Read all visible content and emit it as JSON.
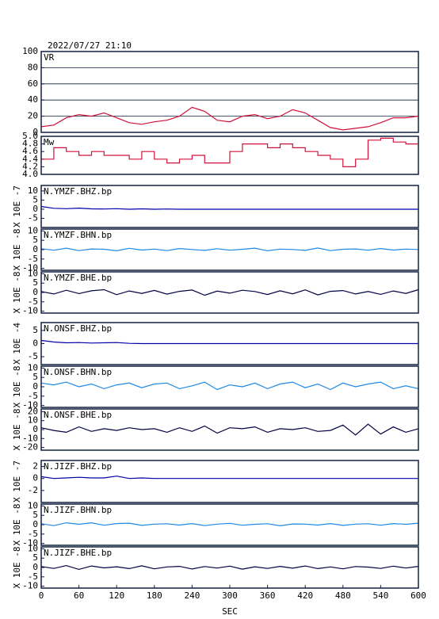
{
  "title": "2022/07/27 21:10",
  "xlabel": "SEC",
  "xlim": [
    0,
    600
  ],
  "xticks": [
    0,
    60,
    120,
    180,
    240,
    300,
    360,
    420,
    480,
    540,
    600
  ],
  "x": [
    0,
    20,
    40,
    60,
    80,
    100,
    120,
    140,
    160,
    180,
    200,
    220,
    240,
    260,
    280,
    300,
    320,
    340,
    360,
    380,
    400,
    420,
    440,
    460,
    480,
    500,
    520,
    540,
    560,
    580,
    600
  ],
  "chart_data": [
    {
      "type": "line",
      "ylim": [
        0,
        100
      ],
      "yticks": [
        0,
        20,
        40,
        60,
        80,
        100
      ],
      "grid": true,
      "series": [
        {
          "name": "VR",
          "color": "#d0103a",
          "values": [
            7,
            9,
            18,
            22,
            20,
            24,
            18,
            12,
            10,
            13,
            15,
            20,
            31,
            26,
            15,
            13,
            20,
            22,
            17,
            20,
            28,
            24,
            15,
            6,
            3,
            5,
            7,
            12,
            18,
            18,
            20
          ]
        }
      ]
    },
    {
      "type": "step",
      "ylim": [
        4,
        5
      ],
      "yticks": [
        {
          "value": 4,
          "label": "4.0"
        },
        {
          "value": 4.2,
          "label": "4.2"
        },
        {
          "value": 4.4,
          "label": "4.4"
        },
        {
          "value": 4.6,
          "label": "4.6"
        },
        {
          "value": 4.8,
          "label": "4.8"
        },
        {
          "value": 5,
          "label": "5.0"
        }
      ],
      "grid": false,
      "series": [
        {
          "name": "Mw",
          "color": "#d0103a",
          "values": [
            4.4,
            4.7,
            4.6,
            4.5,
            4.6,
            4.5,
            4.5,
            4.4,
            4.6,
            4.4,
            4.3,
            4.4,
            4.5,
            4.3,
            4.3,
            4.6,
            4.8,
            4.8,
            4.7,
            4.8,
            4.7,
            4.6,
            4.5,
            4.4,
            4.2,
            4.4,
            4.9,
            4.95,
            4.85,
            4.8,
            4.8
          ]
        }
      ]
    },
    {
      "type": "line",
      "ylabel": "X 10E -7",
      "ylim": [
        -10,
        13
      ],
      "yticks": [
        10,
        5,
        0,
        -5
      ],
      "grid": false,
      "series": [
        {
          "name": "N.YMZF.BHZ.bp",
          "color": "#0000aa",
          "values": [
            1.5,
            0.5,
            0.3,
            0.6,
            0.2,
            0.1,
            0.3,
            0,
            0.2,
            0,
            0.1,
            0,
            0,
            0,
            0,
            0,
            0,
            0,
            0,
            0,
            0,
            0,
            0,
            0,
            0,
            0,
            0,
            0,
            0,
            0,
            0
          ]
        }
      ]
    },
    {
      "type": "line",
      "ylabel": "X 10E -8",
      "ylim": [
        -11,
        11
      ],
      "yticks": [
        10,
        5,
        0,
        -5,
        -10
      ],
      "grid": false,
      "series": [
        {
          "name": "N.YMZF.BHN.bp",
          "color": "#1e88e5",
          "values": [
            0.5,
            -0.3,
            0.8,
            -0.5,
            0.4,
            0.2,
            -0.6,
            0.7,
            -0.2,
            0.3,
            -0.5,
            0.6,
            0.1,
            -0.4,
            0.5,
            -0.3,
            0.2,
            0.8,
            -0.6,
            0.3,
            0.1,
            -0.4,
            0.9,
            -0.5,
            0.2,
            0.4,
            -0.3,
            0.6,
            -0.2,
            0.3,
            0.1
          ]
        }
      ]
    },
    {
      "type": "line",
      "ylabel": "X 10E -8",
      "ylim": [
        -11,
        11
      ],
      "yticks": [
        10,
        5,
        0,
        -5,
        -10
      ],
      "grid": false,
      "series": [
        {
          "name": "N.YMZF.BHE.bp",
          "color": "#000044",
          "values": [
            0.5,
            -0.8,
            1.2,
            -0.6,
            0.9,
            1.5,
            -1.2,
            0.8,
            -0.5,
            1.1,
            -0.9,
            0.6,
            1.3,
            -1.5,
            0.7,
            -0.4,
            1.2,
            0.5,
            -1.1,
            0.9,
            -0.7,
            1.4,
            -1.3,
            0.6,
            1.0,
            -0.8,
            0.5,
            -1.0,
            0.8,
            -0.5,
            1.5
          ]
        }
      ]
    },
    {
      "type": "line",
      "ylabel": "X 10E -4",
      "ylim": [
        -8,
        8
      ],
      "yticks": [
        5,
        0,
        -5
      ],
      "grid": false,
      "series": [
        {
          "name": "N.ONSF.BHZ.bp",
          "color": "#0000aa",
          "values": [
            1.2,
            0.6,
            0.3,
            0.4,
            0.2,
            0.3,
            0.4,
            0.1,
            0,
            0,
            0,
            0,
            0,
            0,
            0,
            0,
            0,
            0,
            0,
            0,
            0,
            0,
            0,
            0,
            0,
            0,
            0,
            0,
            0,
            0,
            0
          ]
        }
      ]
    },
    {
      "type": "line",
      "ylabel": "X 10E -8",
      "ylim": [
        -11,
        11
      ],
      "yticks": [
        10,
        5,
        0,
        -5,
        -10
      ],
      "grid": false,
      "series": [
        {
          "name": "N.ONSF.BHN.bp",
          "color": "#1e88e5",
          "values": [
            2,
            1,
            2.5,
            0,
            1.5,
            -1,
            1,
            2,
            -0.5,
            1.5,
            2,
            -1,
            0.5,
            2.5,
            -1.5,
            1,
            0,
            2,
            -1,
            1.5,
            2.5,
            -0.5,
            1.5,
            -1.5,
            2,
            0,
            1.5,
            2.5,
            -1,
            0.5,
            -1
          ]
        }
      ]
    },
    {
      "type": "line",
      "ylabel": "X 10E -8",
      "ylim": [
        -23,
        23
      ],
      "yticks": [
        20,
        10,
        0,
        -10,
        -20
      ],
      "grid": false,
      "series": [
        {
          "name": "N.ONSF.BHE.bp",
          "color": "#000044",
          "values": [
            2,
            -1,
            -3,
            3,
            -2,
            1,
            -1,
            2,
            0,
            1,
            -3,
            2,
            -2,
            4,
            -4,
            2,
            1,
            3,
            -3,
            1,
            0,
            2,
            -2,
            -1,
            5,
            -6,
            6,
            -5,
            3,
            -3,
            1
          ]
        }
      ]
    },
    {
      "type": "line",
      "ylabel": "X 10E -7",
      "ylim": [
        -4,
        3
      ],
      "yticks": [
        2,
        0,
        -2
      ],
      "grid": false,
      "series": [
        {
          "name": "N.JIZF.BHZ.bp",
          "color": "#0000aa",
          "values": [
            0.3,
            0,
            0.1,
            0.2,
            0.1,
            0.1,
            0.4,
            0,
            0.1,
            0,
            0,
            0,
            0,
            0,
            0,
            0,
            0,
            0,
            0,
            0,
            0,
            0,
            0,
            0,
            0,
            0,
            0,
            0,
            0,
            0,
            0
          ]
        }
      ]
    },
    {
      "type": "line",
      "ylabel": "X 10E -8",
      "ylim": [
        -11,
        11
      ],
      "yticks": [
        10,
        5,
        0,
        -5,
        -10
      ],
      "grid": false,
      "series": [
        {
          "name": "N.JIZF.BHN.bp",
          "color": "#1e88e5",
          "values": [
            0.5,
            -0.5,
            1,
            0.2,
            1,
            -0.3,
            0.6,
            0.8,
            -0.4,
            0.3,
            0.5,
            -0.2,
            0.6,
            -0.5,
            0.3,
            0.7,
            -0.3,
            0.2,
            0.5,
            -0.6,
            0.4,
            0.3,
            -0.2,
            0.6,
            -0.4,
            0.3,
            0.5,
            -0.3,
            0.6,
            0.2,
            0.8
          ]
        }
      ]
    },
    {
      "type": "line",
      "ylabel": "X 10E -8",
      "ylim": [
        -11,
        11
      ],
      "yticks": [
        10,
        5,
        0,
        -5,
        -10
      ],
      "grid": false,
      "series": [
        {
          "name": "N.JIZF.BHE.bp",
          "color": "#000044",
          "values": [
            0.5,
            -0.5,
            1,
            -1,
            0.8,
            -0.2,
            0.4,
            -0.6,
            0.9,
            -0.7,
            0.3,
            0.6,
            -0.8,
            0.5,
            -0.3,
            0.7,
            -0.9,
            0.4,
            -0.5,
            0.6,
            -0.4,
            0.8,
            -0.6,
            0.3,
            -0.7,
            0.5,
            0.2,
            -0.5,
            0.7,
            -0.3,
            0.6
          ]
        }
      ]
    }
  ]
}
